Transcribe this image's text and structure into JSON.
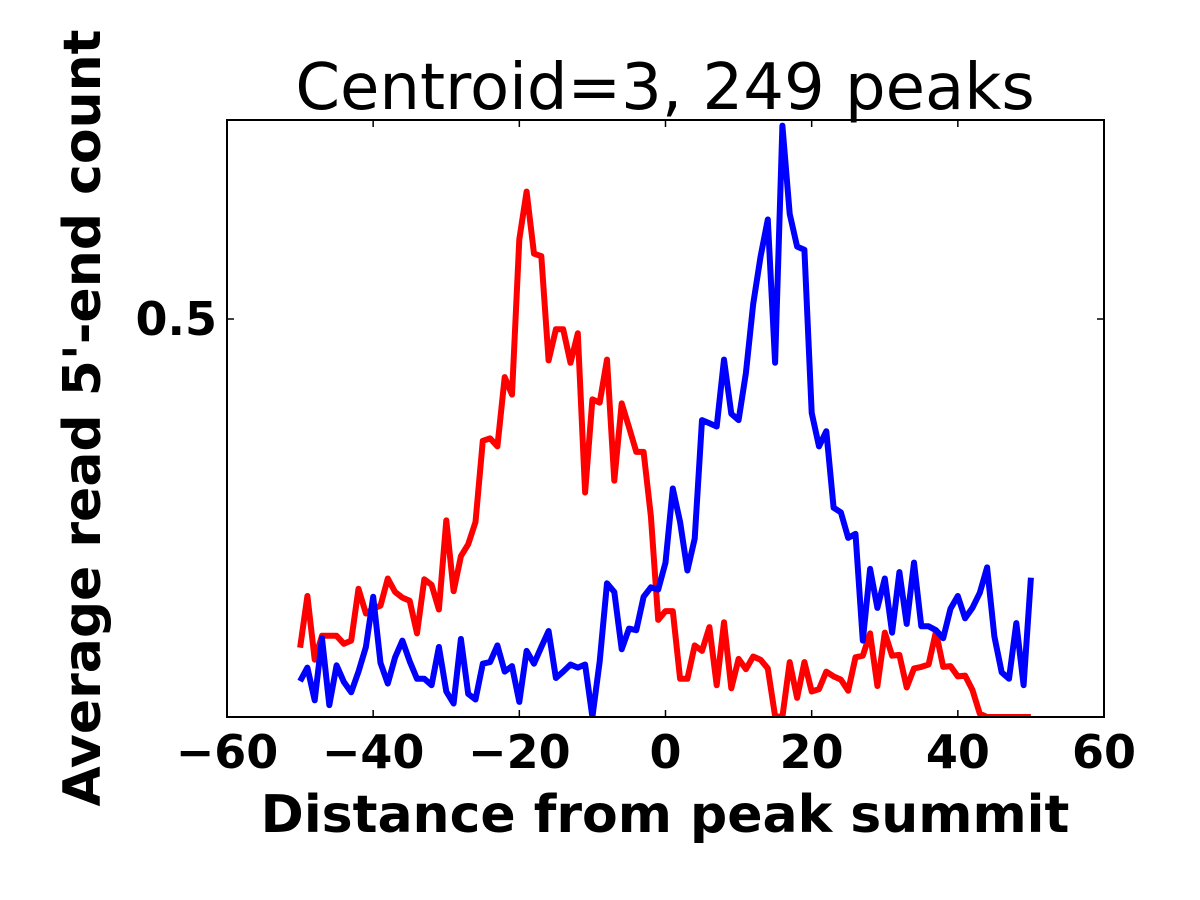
{
  "chart_data": {
    "type": "line",
    "title": "Centroid=3, 249 peaks",
    "xlabel": "Distance from peak summit",
    "ylabel": "Average read 5'-end count",
    "xlim": [
      -60,
      60
    ],
    "ylim": [
      0.0,
      0.75
    ],
    "x_ticks": [
      -60,
      -40,
      -20,
      0,
      20,
      40,
      60
    ],
    "x_tick_labels": [
      "−60",
      "−40",
      "−20",
      "0",
      "20",
      "40",
      "60"
    ],
    "y_ticks": [
      0.5
    ],
    "y_tick_labels": [
      "0.5"
    ],
    "grid": false,
    "legend": "none",
    "x": [
      -50,
      -49,
      -48,
      -47,
      -46,
      -45,
      -44,
      -43,
      -42,
      -41,
      -40,
      -39,
      -38,
      -37,
      -36,
      -35,
      -34,
      -33,
      -32,
      -31,
      -30,
      -29,
      -28,
      -27,
      -26,
      -25,
      -24,
      -23,
      -22,
      -21,
      -20,
      -19,
      -18,
      -17,
      -16,
      -15,
      -14,
      -13,
      -12,
      -11,
      -10,
      -9,
      -8,
      -7,
      -6,
      -5,
      -4,
      -3,
      -2,
      -1,
      0,
      1,
      2,
      3,
      4,
      5,
      6,
      7,
      8,
      9,
      10,
      11,
      12,
      13,
      14,
      15,
      16,
      17,
      18,
      19,
      20,
      21,
      22,
      23,
      24,
      25,
      26,
      27,
      28,
      29,
      30,
      31,
      32,
      33,
      34,
      35,
      36,
      37,
      38,
      39,
      40,
      41,
      42,
      43,
      44,
      45,
      46,
      47,
      48,
      49,
      50
    ],
    "series": [
      {
        "color": "#ff0000",
        "values": [
          0.087,
          0.152,
          0.072,
          0.102,
          0.102,
          0.102,
          0.092,
          0.096,
          0.161,
          0.13,
          0.136,
          0.14,
          0.174,
          0.157,
          0.15,
          0.146,
          0.105,
          0.173,
          0.166,
          0.135,
          0.247,
          0.158,
          0.202,
          0.217,
          0.245,
          0.347,
          0.35,
          0.34,
          0.427,
          0.405,
          0.6,
          0.66,
          0.582,
          0.579,
          0.448,
          0.487,
          0.487,
          0.445,
          0.482,
          0.282,
          0.399,
          0.395,
          0.449,
          0.297,
          0.394,
          0.364,
          0.333,
          0.333,
          0.252,
          0.122,
          0.133,
          0.133,
          0.048,
          0.048,
          0.09,
          0.083,
          0.113,
          0.04,
          0.119,
          0.036,
          0.073,
          0.06,
          0.076,
          0.072,
          0.061,
          0.001,
          0.0,
          0.069,
          0.024,
          0.069,
          0.032,
          0.035,
          0.057,
          0.051,
          0.047,
          0.033,
          0.075,
          0.077,
          0.105,
          0.039,
          0.106,
          0.077,
          0.078,
          0.037,
          0.061,
          0.063,
          0.066,
          0.107,
          0.063,
          0.064,
          0.051,
          0.052,
          0.034,
          0.004,
          0.0,
          0.0,
          0.0,
          0.0,
          0.0,
          0.0,
          0.0
        ]
      },
      {
        "color": "#0000ff",
        "values": [
          0.045,
          0.062,
          0.021,
          0.099,
          0.015,
          0.065,
          0.044,
          0.031,
          0.057,
          0.088,
          0.151,
          0.068,
          0.042,
          0.075,
          0.096,
          0.07,
          0.048,
          0.048,
          0.04,
          0.088,
          0.032,
          0.017,
          0.098,
          0.029,
          0.022,
          0.067,
          0.069,
          0.09,
          0.057,
          0.064,
          0.019,
          0.083,
          0.067,
          0.088,
          0.108,
          0.049,
          0.057,
          0.066,
          0.062,
          0.066,
          0.0,
          0.07,
          0.168,
          0.157,
          0.085,
          0.111,
          0.109,
          0.151,
          0.163,
          0.16,
          0.194,
          0.287,
          0.245,
          0.184,
          0.224,
          0.373,
          0.369,
          0.365,
          0.449,
          0.381,
          0.373,
          0.432,
          0.519,
          0.578,
          0.625,
          0.445,
          0.743,
          0.632,
          0.591,
          0.587,
          0.382,
          0.34,
          0.359,
          0.263,
          0.257,
          0.225,
          0.23,
          0.096,
          0.186,
          0.137,
          0.174,
          0.106,
          0.182,
          0.117,
          0.194,
          0.114,
          0.114,
          0.109,
          0.099,
          0.136,
          0.152,
          0.124,
          0.137,
          0.156,
          0.188,
          0.101,
          0.056,
          0.048,
          0.118,
          0.04,
          0.175
        ]
      }
    ]
  }
}
